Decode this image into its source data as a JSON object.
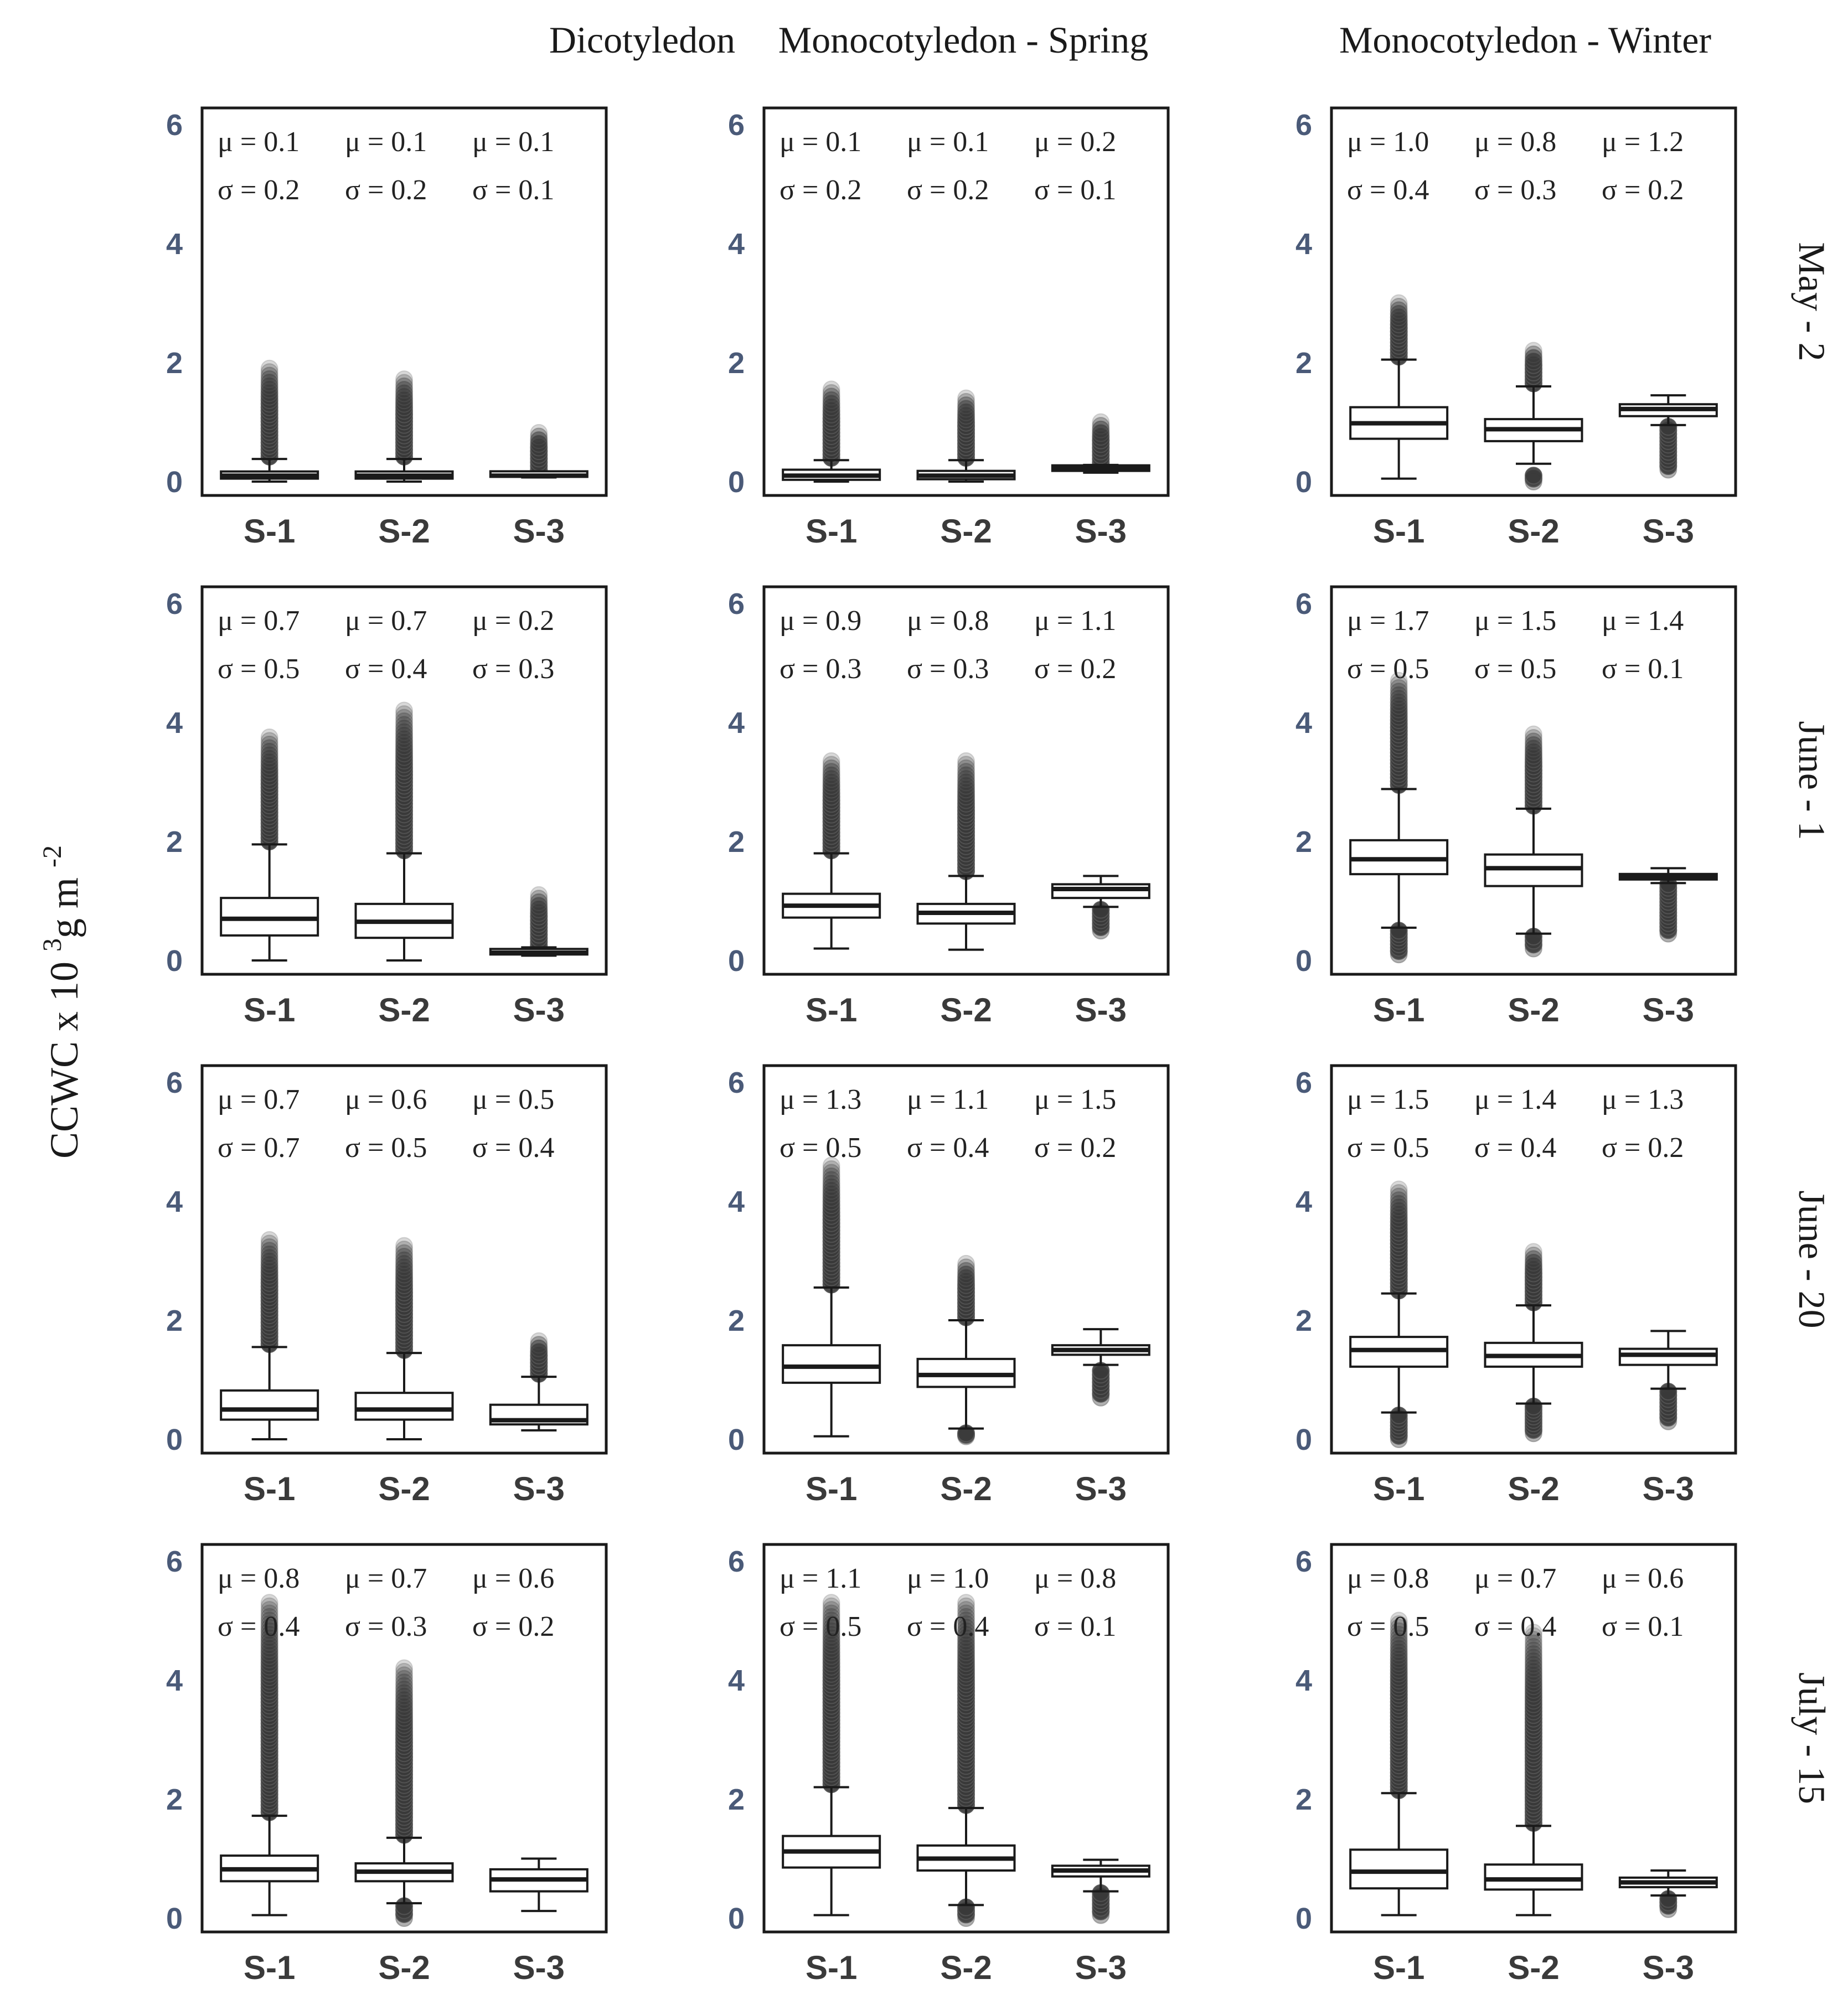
{
  "chart_data": {
    "type": "box",
    "ylabel": "CCWC x 10",
    "ylabel_sup1": "3",
    "ylabel_mid": "g m",
    "ylabel_sup2": "-2",
    "columns": [
      "Dicotyledon",
      "Monocotyledon  - Spring",
      "Monocotyledon  - Winter"
    ],
    "rows": [
      "May - 2",
      "June - 1",
      "June - 20",
      "July - 15"
    ],
    "categories": [
      "S-1",
      "S-2",
      "S-3"
    ],
    "yticks": [
      "0",
      "2",
      "4",
      "6"
    ],
    "ylim": [
      0,
      6
    ],
    "panels": [
      [
        {
          "mu": [
            "μ = 0.1",
            "μ = 0.1",
            "μ = 0.1"
          ],
          "sigma": [
            "σ = 0.2",
            "σ = 0.2",
            "σ = 0.1"
          ],
          "boxes": [
            {
              "wl": 0,
              "q1": 0.05,
              "med": 0.1,
              "q3": 0.17,
              "wh": 0.38,
              "ohi": [
                0.42,
                1.9
              ],
              "olo": null
            },
            {
              "wl": 0,
              "q1": 0.05,
              "med": 0.1,
              "q3": 0.17,
              "wh": 0.38,
              "ohi": [
                0.42,
                1.72
              ],
              "olo": null
            },
            {
              "wl": 0.07,
              "q1": 0.08,
              "med": 0.1,
              "q3": 0.12,
              "wh": 0.14,
              "ohi": [
                0.2,
                0.82
              ],
              "olo": null
            }
          ]
        },
        {
          "mu": [
            "μ = 0.1",
            "μ = 0.1",
            "μ = 0.2"
          ],
          "sigma": [
            "σ = 0.2",
            "σ = 0.2",
            "σ = 0.1"
          ],
          "boxes": [
            {
              "wl": 0,
              "q1": 0.03,
              "med": 0.1,
              "q3": 0.2,
              "wh": 0.36,
              "ohi": [
                0.4,
                1.55
              ],
              "olo": null
            },
            {
              "wl": 0,
              "q1": 0.04,
              "med": 0.1,
              "q3": 0.18,
              "wh": 0.36,
              "ohi": [
                0.4,
                1.4
              ],
              "olo": null
            },
            {
              "wl": 0.15,
              "q1": 0.18,
              "med": 0.22,
              "q3": 0.26,
              "wh": 0.28,
              "ohi": [
                0.32,
                1.0
              ],
              "olo": null
            }
          ]
        },
        {
          "mu": [
            "μ = 1.0",
            "μ = 0.8",
            "μ = 1.2"
          ],
          "sigma": [
            "σ = 0.4",
            "σ = 0.3",
            "σ = 0.2"
          ],
          "boxes": [
            {
              "wl": 0.05,
              "q1": 0.72,
              "med": 0.98,
              "q3": 1.25,
              "wh": 2.05,
              "ohi": [
                2.1,
                3.0
              ],
              "olo": null
            },
            {
              "wl": 0.3,
              "q1": 0.68,
              "med": 0.88,
              "q3": 1.05,
              "wh": 1.6,
              "ohi": [
                1.65,
                2.2
              ],
              "olo": [
                0.0,
                0.1
              ]
            },
            {
              "wl": 0.95,
              "q1": 1.1,
              "med": 1.22,
              "q3": 1.3,
              "wh": 1.45,
              "ohi": null,
              "olo": [
                0.2,
                0.92
              ]
            }
          ]
        }
      ],
      [
        {
          "mu": [
            "μ = 0.7",
            "μ = 0.7",
            "μ = 0.2"
          ],
          "sigma": [
            "σ = 0.5",
            "σ = 0.4",
            "σ = 0.3"
          ],
          "boxes": [
            {
              "wl": 0,
              "q1": 0.42,
              "med": 0.7,
              "q3": 1.05,
              "wh": 1.95,
              "ohi": [
                2.0,
                3.75
              ],
              "olo": null
            },
            {
              "wl": 0,
              "q1": 0.38,
              "med": 0.65,
              "q3": 0.95,
              "wh": 1.8,
              "ohi": [
                1.85,
                4.2
              ],
              "olo": null
            },
            {
              "wl": 0.08,
              "q1": 0.1,
              "med": 0.13,
              "q3": 0.16,
              "wh": 0.22,
              "ohi": [
                0.25,
                1.1
              ],
              "olo": null
            }
          ]
        },
        {
          "mu": [
            "μ = 0.9",
            "μ = 0.8",
            "μ = 1.1"
          ],
          "sigma": [
            "σ = 0.3",
            "σ = 0.3",
            "σ = 0.2"
          ],
          "boxes": [
            {
              "wl": 0.2,
              "q1": 0.72,
              "med": 0.92,
              "q3": 1.12,
              "wh": 1.8,
              "ohi": [
                1.85,
                3.35
              ],
              "olo": null
            },
            {
              "wl": 0.18,
              "q1": 0.62,
              "med": 0.8,
              "q3": 0.95,
              "wh": 1.42,
              "ohi": [
                1.5,
                3.35
              ],
              "olo": null
            },
            {
              "wl": 0.9,
              "q1": 1.05,
              "med": 1.2,
              "q3": 1.28,
              "wh": 1.42,
              "ohi": null,
              "olo": [
                0.5,
                0.85
              ]
            }
          ]
        },
        {
          "mu": [
            "μ = 1.7",
            "μ = 1.5",
            "μ = 1.4"
          ],
          "sigma": [
            "σ = 0.5",
            "σ = 0.5",
            "σ = 0.1"
          ],
          "boxes": [
            {
              "wl": 0.55,
              "q1": 1.45,
              "med": 1.7,
              "q3": 2.02,
              "wh": 2.88,
              "ohi": [
                2.95,
                4.7
              ],
              "olo": [
                0.1,
                0.5
              ]
            },
            {
              "wl": 0.45,
              "q1": 1.25,
              "med": 1.55,
              "q3": 1.78,
              "wh": 2.55,
              "ohi": [
                2.6,
                3.8
              ],
              "olo": [
                0.2,
                0.4
              ]
            },
            {
              "wl": 1.3,
              "q1": 1.36,
              "med": 1.4,
              "q3": 1.45,
              "wh": 1.55,
              "ohi": null,
              "olo": [
                0.45,
                1.28
              ]
            }
          ]
        }
      ],
      [
        {
          "mu": [
            "μ = 0.7",
            "μ = 0.6",
            "μ = 0.5"
          ],
          "sigma": [
            "σ = 0.7",
            "σ = 0.5",
            "σ = 0.4"
          ],
          "boxes": [
            {
              "wl": 0,
              "q1": 0.33,
              "med": 0.5,
              "q3": 0.82,
              "wh": 1.55,
              "ohi": [
                1.6,
                3.35
              ],
              "olo": null
            },
            {
              "wl": 0,
              "q1": 0.33,
              "med": 0.5,
              "q3": 0.78,
              "wh": 1.45,
              "ohi": [
                1.5,
                3.25
              ],
              "olo": null
            },
            {
              "wl": 0.15,
              "q1": 0.25,
              "med": 0.32,
              "q3": 0.58,
              "wh": 1.05,
              "ohi": [
                1.1,
                1.65
              ],
              "olo": null
            }
          ]
        },
        {
          "mu": [
            "μ = 1.3",
            "μ = 1.1",
            "μ = 1.5"
          ],
          "sigma": [
            "σ = 0.5",
            "σ = 0.4",
            "σ = 0.2"
          ],
          "boxes": [
            {
              "wl": 0.05,
              "q1": 0.95,
              "med": 1.22,
              "q3": 1.58,
              "wh": 2.55,
              "ohi": [
                2.6,
                4.6
              ],
              "olo": null
            },
            {
              "wl": 0.18,
              "q1": 0.88,
              "med": 1.08,
              "q3": 1.35,
              "wh": 2.0,
              "ohi": [
                2.05,
                2.95
              ],
              "olo": [
                0.05,
                0.1
              ]
            },
            {
              "wl": 1.25,
              "q1": 1.42,
              "med": 1.5,
              "q3": 1.58,
              "wh": 1.85,
              "ohi": null,
              "olo": [
                0.7,
                1.15
              ]
            }
          ]
        },
        {
          "mu": [
            "μ = 1.5",
            "μ = 1.4",
            "μ = 1.3"
          ],
          "sigma": [
            "σ = 0.5",
            "σ = 0.4",
            "σ = 0.2"
          ],
          "boxes": [
            {
              "wl": 0.45,
              "q1": 1.22,
              "med": 1.5,
              "q3": 1.72,
              "wh": 2.45,
              "ohi": [
                2.5,
                4.2
              ],
              "olo": [
                0.0,
                0.4
              ]
            },
            {
              "wl": 0.6,
              "q1": 1.22,
              "med": 1.4,
              "q3": 1.62,
              "wh": 2.25,
              "ohi": [
                2.3,
                3.15
              ],
              "olo": [
                0.1,
                0.55
              ]
            },
            {
              "wl": 0.85,
              "q1": 1.25,
              "med": 1.42,
              "q3": 1.52,
              "wh": 1.82,
              "ohi": null,
              "olo": [
                0.3,
                0.8
              ]
            }
          ]
        }
      ],
      [
        {
          "mu": [
            "μ = 0.8",
            "μ = 0.7",
            "μ = 0.6"
          ],
          "sigma": [
            "σ = 0.4",
            "σ = 0.3",
            "σ = 0.2"
          ],
          "boxes": [
            {
              "wl": 0.05,
              "q1": 0.62,
              "med": 0.82,
              "q3": 1.05,
              "wh": 1.72,
              "ohi": [
                1.78,
                5.3
              ],
              "olo": null
            },
            {
              "wl": 0.25,
              "q1": 0.62,
              "med": 0.78,
              "q3": 0.92,
              "wh": 1.35,
              "ohi": [
                1.4,
                4.2
              ],
              "olo": [
                0.0,
                0.2
              ]
            },
            {
              "wl": 0.12,
              "q1": 0.45,
              "med": 0.65,
              "q3": 0.82,
              "wh": 1.0,
              "ohi": null,
              "olo": null
            }
          ]
        },
        {
          "mu": [
            "μ = 1.1",
            "μ = 1.0",
            "μ = 0.8"
          ],
          "sigma": [
            "σ = 0.5",
            "σ = 0.4",
            "σ = 0.1"
          ],
          "boxes": [
            {
              "wl": 0.05,
              "q1": 0.85,
              "med": 1.12,
              "q3": 1.38,
              "wh": 2.2,
              "ohi": [
                2.25,
                5.3
              ],
              "olo": null
            },
            {
              "wl": 0.22,
              "q1": 0.8,
              "med": 1.0,
              "q3": 1.22,
              "wh": 1.85,
              "ohi": [
                1.9,
                5.3
              ],
              "olo": [
                0.0,
                0.18
              ]
            },
            {
              "wl": 0.45,
              "q1": 0.7,
              "med": 0.8,
              "q3": 0.88,
              "wh": 0.98,
              "ohi": null,
              "olo": [
                0.05,
                0.42
              ]
            }
          ]
        },
        {
          "mu": [
            "μ = 0.8",
            "μ = 0.7",
            "μ = 0.6"
          ],
          "sigma": [
            "σ = 0.5",
            "σ = 0.4",
            "σ = 0.1"
          ],
          "boxes": [
            {
              "wl": 0.05,
              "q1": 0.5,
              "med": 0.78,
              "q3": 1.15,
              "wh": 2.1,
              "ohi": [
                2.15,
                5.0
              ],
              "olo": null
            },
            {
              "wl": 0.05,
              "q1": 0.48,
              "med": 0.65,
              "q3": 0.9,
              "wh": 1.55,
              "ohi": [
                1.6,
                4.8
              ],
              "olo": null
            },
            {
              "wl": 0.38,
              "q1": 0.52,
              "med": 0.6,
              "q3": 0.68,
              "wh": 0.8,
              "ohi": null,
              "olo": [
                0.15,
                0.32
              ]
            }
          ]
        }
      ]
    ]
  }
}
